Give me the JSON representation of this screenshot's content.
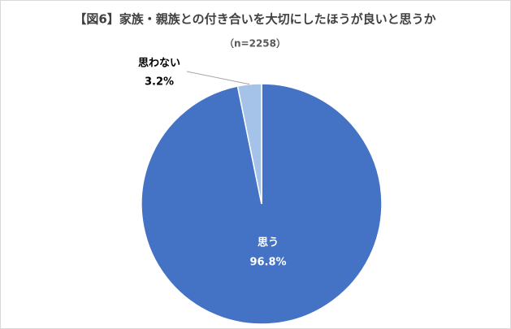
{
  "chart_data": {
    "type": "pie",
    "title": "【図6】家族・親族との付き合いを大切にしたほうが良いと思うか",
    "subtitle": "（n=2258）",
    "categories": [
      "思う",
      "思わない"
    ],
    "values": [
      96.8,
      3.2
    ],
    "value_labels": [
      "96.8%",
      "3.2%"
    ],
    "colors": [
      "#4472c4",
      "#a5c3e8"
    ]
  }
}
